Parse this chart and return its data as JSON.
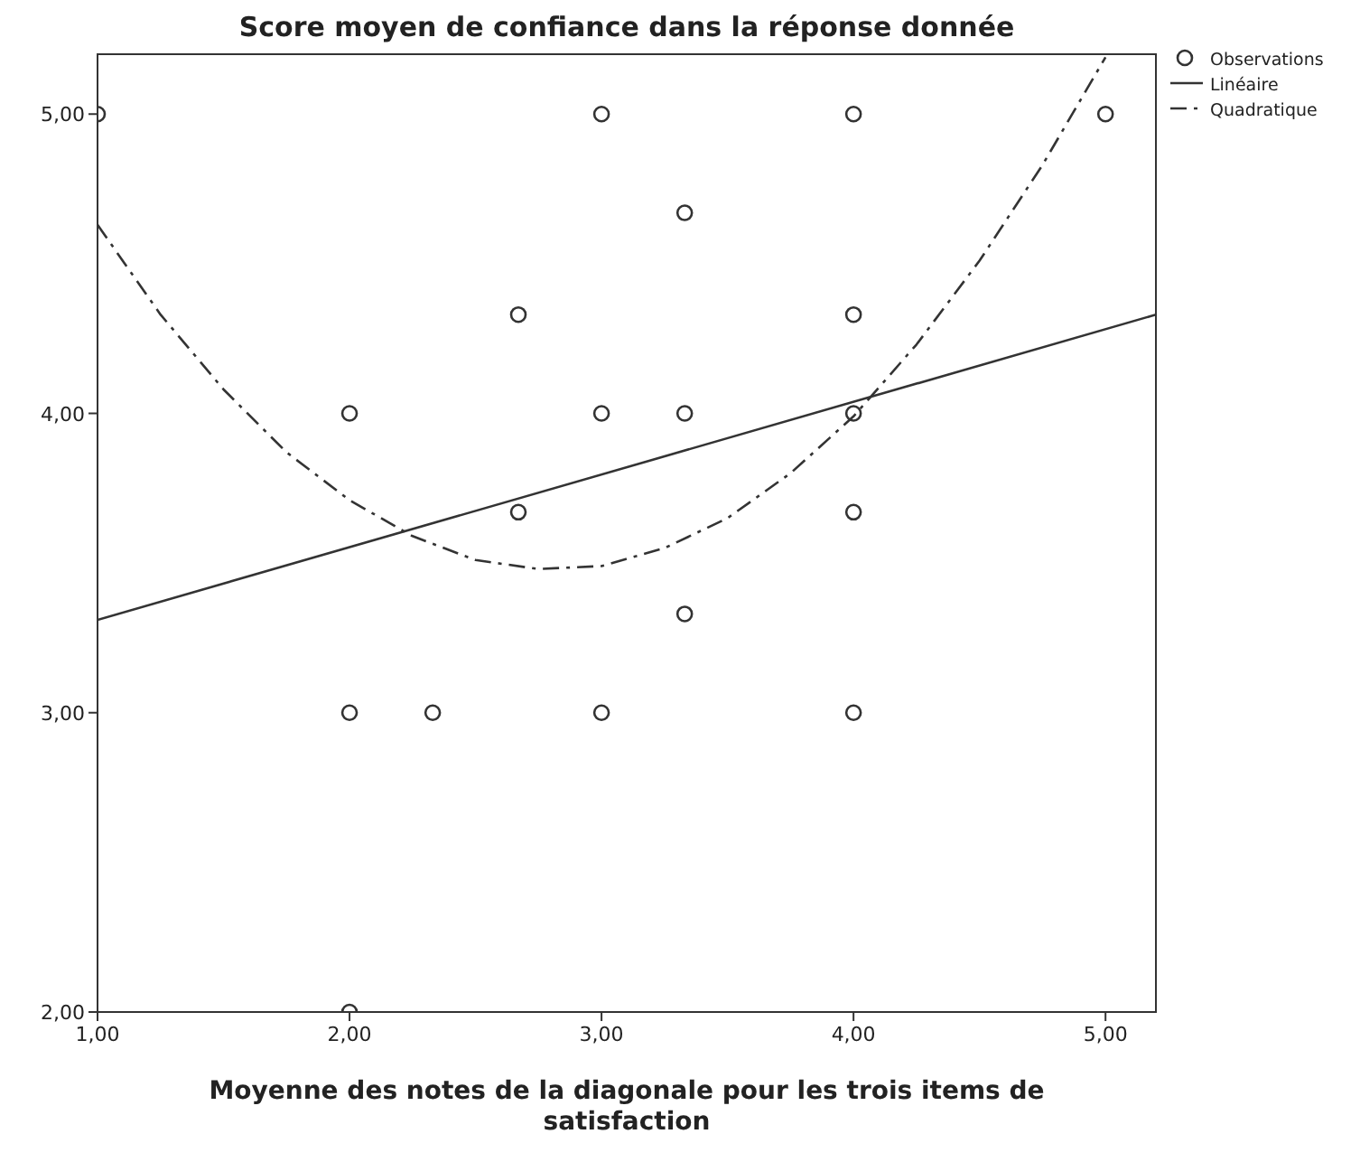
{
  "chart_data": {
    "type": "scatter",
    "title": "Score moyen de confiance dans la réponse donnée",
    "xlabel": "Moyenne des notes de la diagonale pour les trois items de satisfaction",
    "xlim": [
      1,
      5.2
    ],
    "ylim": [
      2,
      5.2
    ],
    "xticks": [
      {
        "value": 1,
        "label": "1,00"
      },
      {
        "value": 2,
        "label": "2,00"
      },
      {
        "value": 3,
        "label": "3,00"
      },
      {
        "value": 4,
        "label": "4,00"
      },
      {
        "value": 5,
        "label": "5,00"
      }
    ],
    "yticks": [
      {
        "value": 2,
        "label": "2,00"
      },
      {
        "value": 3,
        "label": "3,00"
      },
      {
        "value": 4,
        "label": "4,00"
      },
      {
        "value": 5,
        "label": "5,00"
      }
    ],
    "grid": false,
    "legend": "top right",
    "series": [
      {
        "name": "Observations",
        "color": "#333333",
        "marker": "circle",
        "x": [
          1,
          2,
          2,
          2,
          2.33,
          2.67,
          2.67,
          3,
          3,
          3,
          3.33,
          3.33,
          3.33,
          4,
          4,
          4,
          4,
          4,
          5
        ],
        "values": [
          5,
          4,
          3,
          2,
          3,
          4.33,
          3.67,
          5,
          4,
          3,
          4.67,
          4,
          3.33,
          5,
          4.33,
          4,
          3.67,
          3,
          5
        ]
      },
      {
        "name": "Linéaire",
        "type": "line",
        "color": "#333333",
        "marker": "none",
        "line_style": "solid",
        "x": [
          1,
          5.2
        ],
        "values": [
          3.31,
          4.33
        ]
      },
      {
        "name": "Quadratique",
        "type": "line",
        "color": "#333333",
        "marker": "none",
        "line_style": "dashed",
        "x": [
          1,
          1.25,
          1.5,
          1.75,
          2,
          2.25,
          2.5,
          2.75,
          3,
          3.25,
          3.5,
          3.75,
          4,
          4.25,
          4.5,
          4.75,
          5
        ],
        "values": [
          4.63,
          4.33,
          4.08,
          3.87,
          3.71,
          3.59,
          3.51,
          3.48,
          3.49,
          3.55,
          3.65,
          3.8,
          3.99,
          4.23,
          4.51,
          4.83,
          5.19
        ]
      }
    ]
  }
}
